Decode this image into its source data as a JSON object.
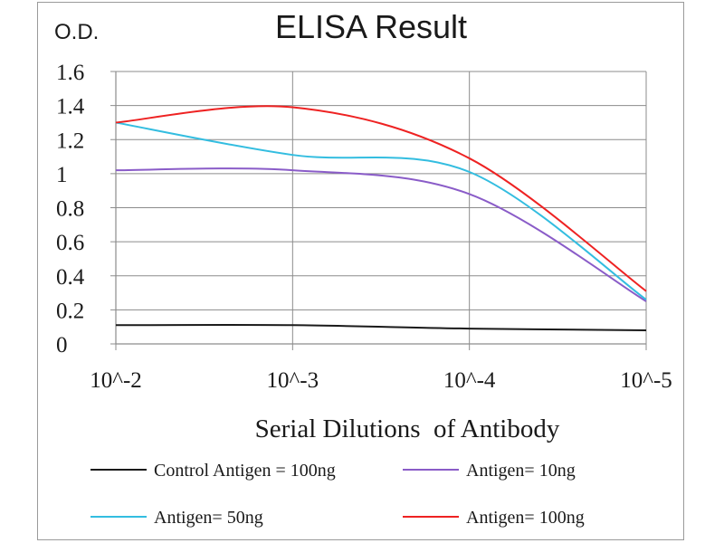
{
  "chart_data": {
    "type": "line",
    "title": "ELISA Result",
    "ylabel": "O.D.",
    "xlabel": "Serial Dilutions  of Antibody",
    "categories": [
      "10^-2",
      "10^-3",
      "10^-4",
      "10^-5"
    ],
    "x": [
      0,
      1,
      2,
      3
    ],
    "ylim": [
      0,
      1.6
    ],
    "yticks": [
      0,
      0.2,
      0.4,
      0.6,
      0.8,
      1,
      1.2,
      1.4,
      1.6
    ],
    "ytick_labels": [
      "0",
      "0.2",
      "0.4",
      "0.6",
      "0.8",
      "1",
      "1.2",
      "1.4",
      "1.6"
    ],
    "grid": true,
    "legend_position": "bottom",
    "series": [
      {
        "name": "Control Antigen = 100ng",
        "color": "#1a1a1a",
        "values": [
          0.11,
          0.11,
          0.09,
          0.08
        ]
      },
      {
        "name": "Antigen= 10ng",
        "color": "#8a5cc8",
        "values": [
          1.02,
          1.02,
          0.88,
          0.25
        ]
      },
      {
        "name": "Antigen= 50ng",
        "color": "#33bde0",
        "values": [
          1.3,
          1.11,
          1.01,
          0.26
        ]
      },
      {
        "name": "Antigen= 100ng",
        "color": "#ee2222",
        "values": [
          1.3,
          1.39,
          1.09,
          0.31
        ]
      }
    ]
  }
}
